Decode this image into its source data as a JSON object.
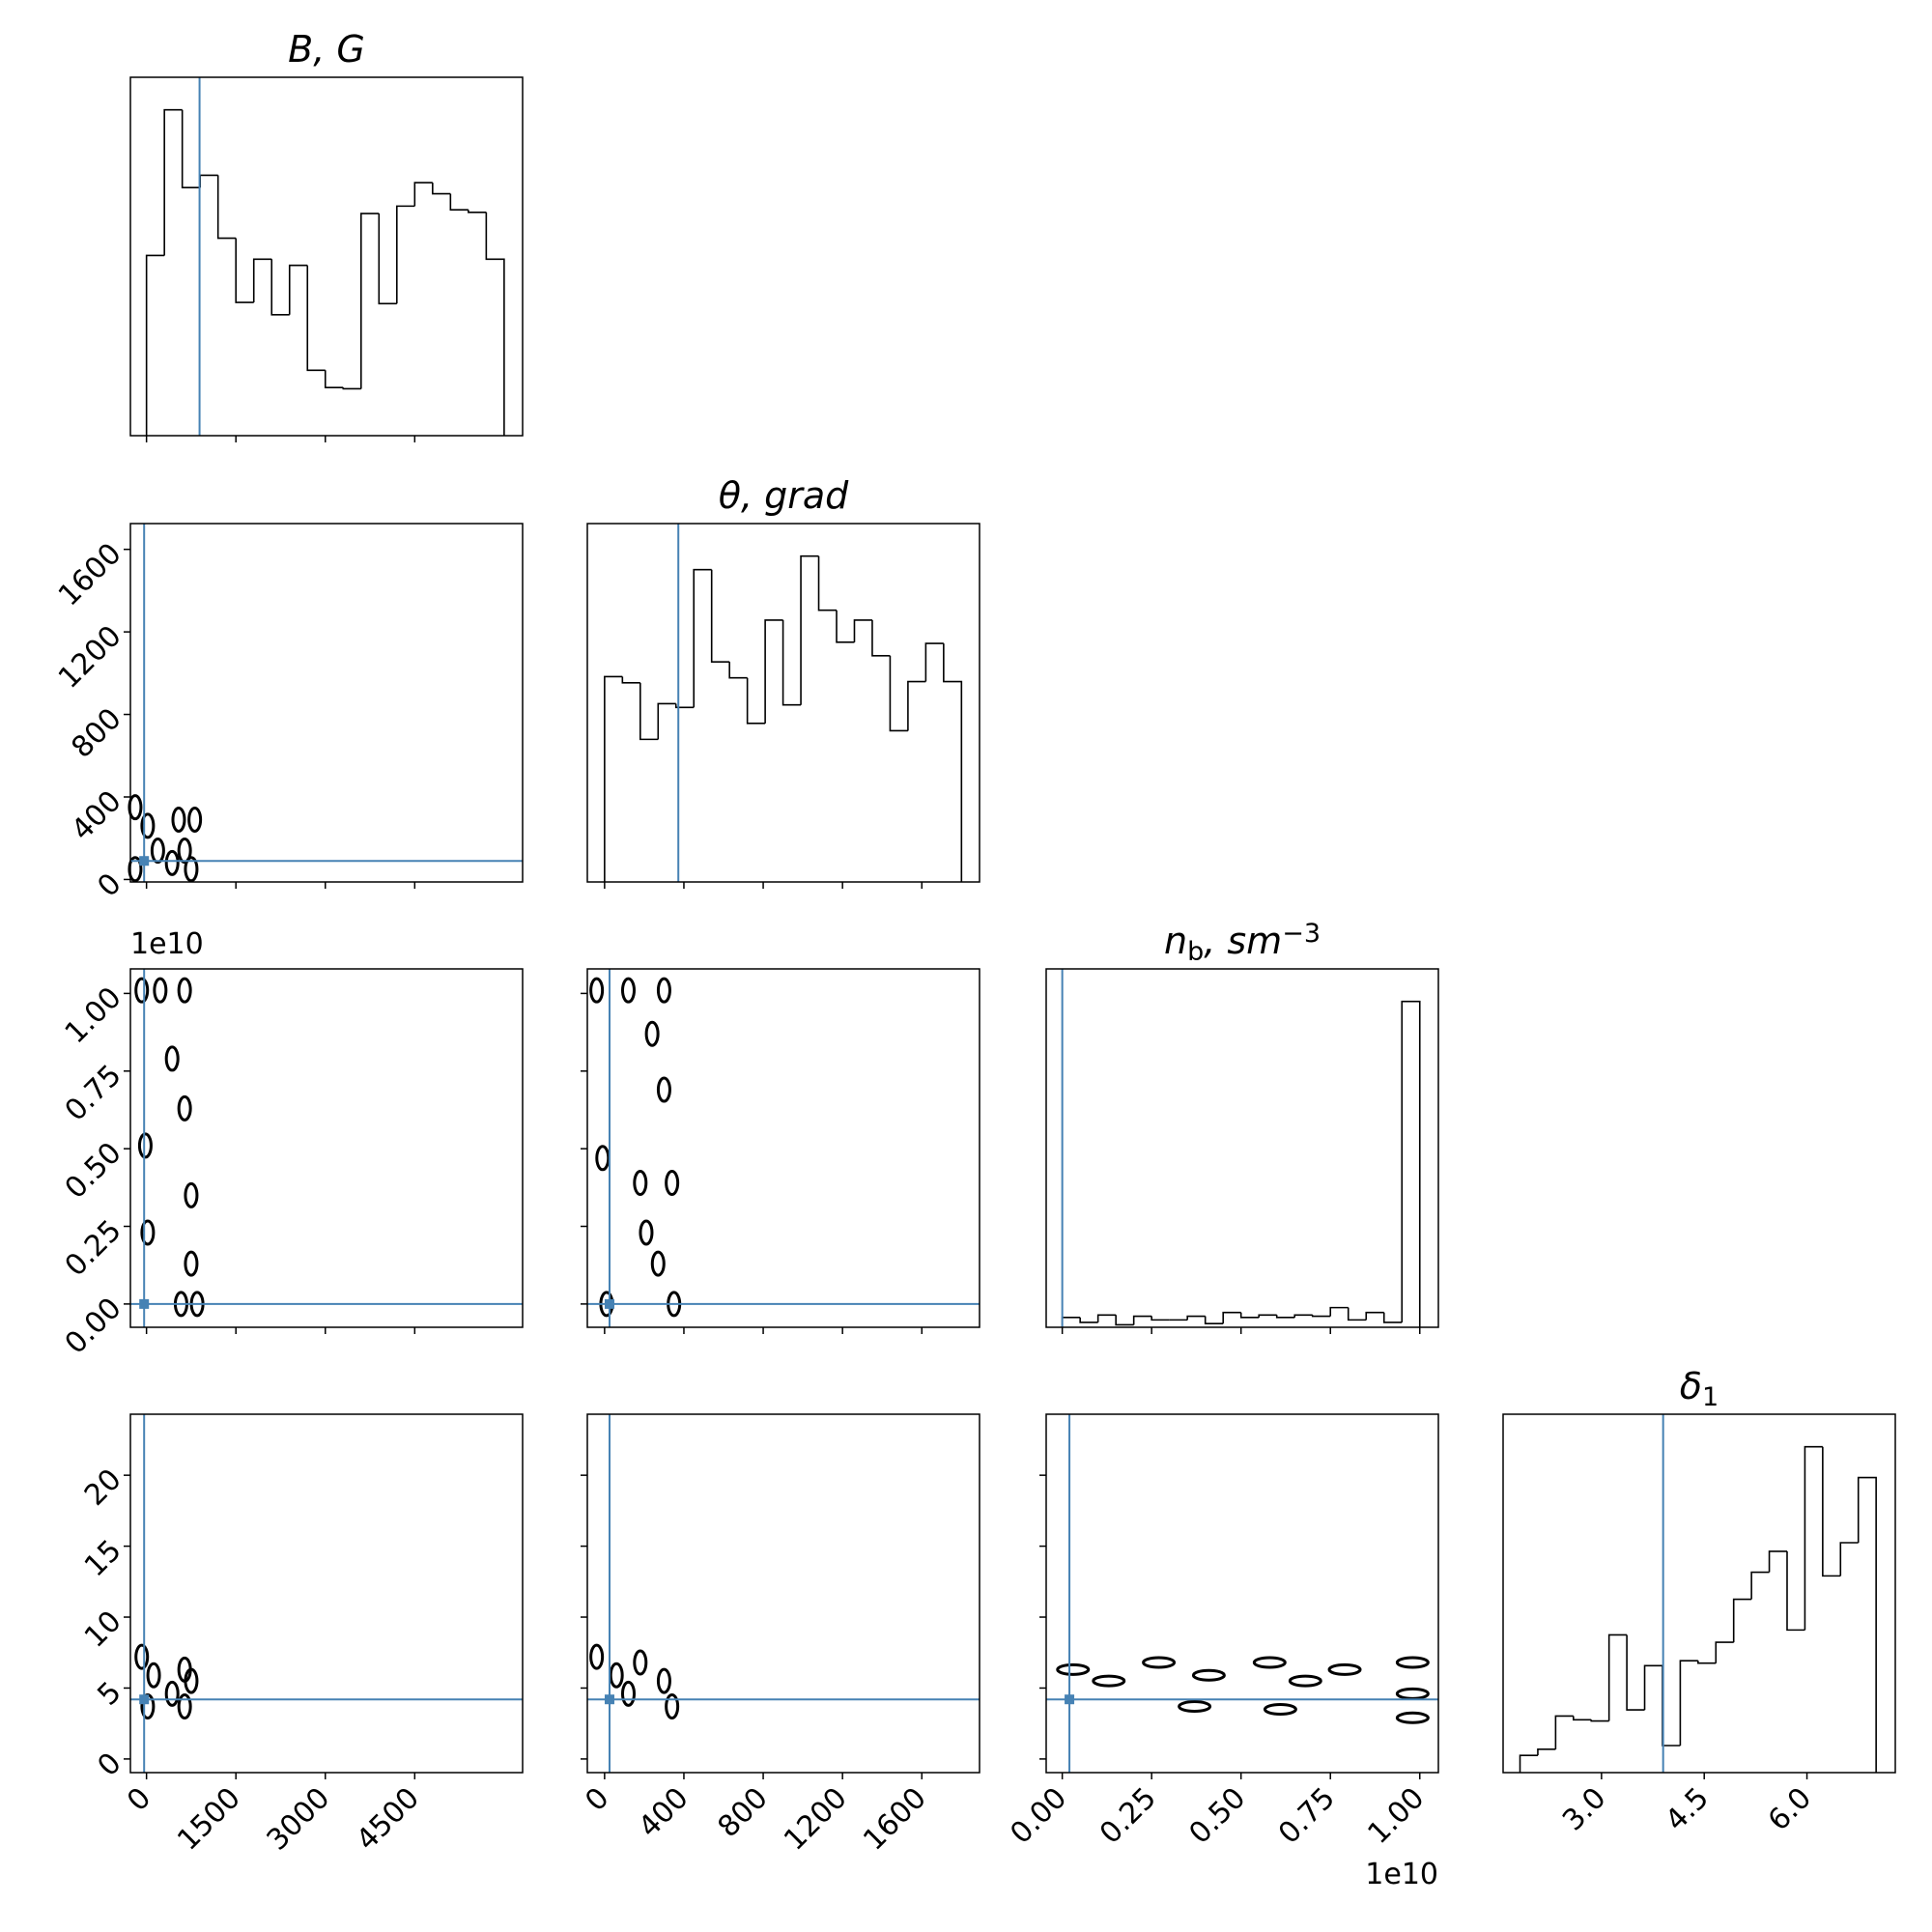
{
  "chart_data": [
    {
      "type": "histogram",
      "title": [
        "B, G"
      ],
      "title_shift": [
        "none"
      ],
      "bins": [
        0,
        300,
        600,
        900,
        1200,
        1500,
        1800,
        2100,
        2400,
        2700,
        3000,
        3300,
        3600,
        3900,
        4200,
        4500,
        4800,
        5100,
        5400,
        5700,
        6000
      ],
      "counts": [
        146,
        264,
        201,
        211,
        160,
        108,
        143,
        98,
        138,
        53,
        39,
        38,
        180,
        107,
        186,
        205,
        196,
        183,
        181,
        143
      ],
      "xlim": [
        -270,
        6310
      ],
      "truth": 890,
      "color": "#000000",
      "truth_color": "#4682b4"
    },
    {
      "type": "scatter",
      "x": [
        -190,
        20,
        190,
        540,
        640,
        750,
        430,
        810,
        -190
      ],
      "y": [
        350,
        260,
        140,
        290,
        140,
        50,
        80,
        290,
        50
      ],
      "xlim": [
        -270,
        6310
      ],
      "ylim": [
        -12,
        1725
      ],
      "yticks": [
        0,
        400,
        800,
        1200,
        1600
      ],
      "truth_x": -40,
      "truth_y": 90,
      "color": "#000000",
      "truth_color": "#4682b4"
    },
    {
      "type": "histogram",
      "title": [
        "θ, grad"
      ],
      "title_shift": [
        "none"
      ],
      "bins": [
        0,
        90,
        180,
        270,
        360,
        450,
        540,
        630,
        720,
        810,
        900,
        990,
        1080,
        1170,
        1260,
        1350,
        1440,
        1530,
        1620,
        1710,
        1800
      ],
      "counts": [
        167,
        162,
        116,
        145,
        142,
        254,
        179,
        166,
        129,
        213,
        144,
        265,
        221,
        195,
        213,
        184,
        123,
        163,
        194,
        163
      ],
      "xlim": [
        -87,
        1891
      ],
      "truth": 372,
      "color": "#000000",
      "truth_color": "#4682b4"
    },
    {
      "type": "scatter",
      "x": [
        -80,
        230,
        640,
        430,
        640,
        750,
        -20,
        20,
        750,
        850,
        580
      ],
      "y": [
        1.01,
        1.01,
        1.01,
        0.79,
        0.63,
        0.35,
        0.51,
        0.23,
        0.13,
        0,
        0
      ],
      "xlim": [
        -270,
        6310
      ],
      "ylim": [
        -0.075,
        1.079
      ],
      "yticks": [
        {
          "value": 0,
          "label": "0.00"
        },
        {
          "value": 0.25,
          "label": "0.25"
        },
        {
          "value": 0.5,
          "label": "0.50"
        },
        {
          "value": 0.75,
          "label": "0.75"
        },
        {
          "value": 1,
          "label": "1.00"
        }
      ],
      "y_offset_label": "1e10",
      "truth_x": -40,
      "truth_y": 0,
      "color": "#000000",
      "truth_color": "#4682b4"
    },
    {
      "type": "scatter",
      "x": [
        -40,
        120,
        300,
        240,
        300,
        -10,
        180,
        340,
        210,
        270,
        10,
        350
      ],
      "y": [
        1.01,
        1.01,
        1.01,
        0.87,
        0.69,
        0.47,
        0.39,
        0.39,
        0.23,
        0.13,
        0,
        0
      ],
      "xlim": [
        -87,
        1891
      ],
      "ylim": [
        -0.075,
        1.079
      ],
      "truth_x": 25,
      "truth_y": 0,
      "color": "#000000",
      "truth_color": "#4682b4"
    },
    {
      "type": "histogram",
      "title": [
        "n",
        "b",
        ", sm",
        "−3"
      ],
      "title_shift": [
        "none",
        "sub",
        "none",
        "super"
      ],
      "bins": [
        0,
        0.05,
        0.1,
        0.15,
        0.2,
        0.25,
        0.3,
        0.35,
        0.4,
        0.45,
        0.5,
        0.55,
        0.6,
        0.65,
        0.7,
        0.75,
        0.8,
        0.85,
        0.9,
        0.95,
        1
      ],
      "counts": [
        8,
        4,
        10,
        2,
        9,
        6,
        6,
        9,
        3,
        12,
        8,
        10,
        8,
        10,
        9,
        16,
        6,
        12,
        4,
        265
      ],
      "xlim": [
        -0.045,
        1.052
      ],
      "truth": 0,
      "color": "#000000",
      "truth_color": "#4682b4"
    },
    {
      "type": "scatter",
      "x": [
        -80,
        120,
        640,
        750,
        430,
        20,
        640
      ],
      "y": [
        7.2,
        5.9,
        6.3,
        5.5,
        4.6,
        3.7,
        3.7
      ],
      "xlim": [
        -270,
        6310
      ],
      "ylim": [
        -0.96,
        24.3
      ],
      "xticks": [
        0,
        1500,
        3000,
        4500
      ],
      "yticks": [
        0,
        5,
        10,
        15,
        20
      ],
      "truth_x": -40,
      "truth_y": 4.2,
      "color": "#000000",
      "truth_color": "#4682b4"
    },
    {
      "type": "scatter",
      "x": [
        -40,
        60,
        180,
        300,
        120,
        340
      ],
      "y": [
        7.2,
        5.9,
        6.8,
        5.5,
        4.6,
        3.7
      ],
      "xlim": [
        -87,
        1891
      ],
      "ylim": [
        -0.96,
        24.3
      ],
      "xticks": [
        0,
        400,
        800,
        1200,
        1600
      ],
      "truth_x": 25,
      "truth_y": 4.2,
      "color": "#000000",
      "truth_color": "#4682b4"
    },
    {
      "type": "scatter",
      "x": [
        0.03,
        0.13,
        0.27,
        0.41,
        0.58,
        0.68,
        0.79,
        0.98,
        0.98,
        0.98,
        0.61,
        0.37
      ],
      "y": [
        6.3,
        5.5,
        6.8,
        5.9,
        6.8,
        5.5,
        6.3,
        6.8,
        4.6,
        2.9,
        3.5,
        3.7
      ],
      "xlim": [
        -0.045,
        1.052
      ],
      "ylim": [
        -0.96,
        24.3
      ],
      "xticks": [
        {
          "value": 0,
          "label": "0.00"
        },
        {
          "value": 0.25,
          "label": "0.25"
        },
        {
          "value": 0.5,
          "label": "0.50"
        },
        {
          "value": 0.75,
          "label": "0.75"
        },
        {
          "value": 1,
          "label": "1.00"
        }
      ],
      "x_offset_label": "1e10",
      "truth_x": 0.02,
      "truth_y": 4.2,
      "color": "#000000",
      "truth_color": "#4682b4"
    },
    {
      "type": "histogram",
      "title": [
        "δ",
        "1"
      ],
      "title_shift": [
        "none",
        "sub"
      ],
      "bins": [
        1.81,
        2.07,
        2.33,
        2.59,
        2.85,
        3.11,
        3.37,
        3.63,
        3.89,
        4.15,
        4.41,
        4.67,
        4.93,
        5.19,
        5.45,
        5.71,
        5.97,
        6.23,
        6.49,
        6.75,
        7.01
      ],
      "counts": [
        14,
        19,
        46,
        43,
        42,
        112,
        51,
        87,
        22,
        91,
        89,
        106,
        141,
        163,
        180,
        116,
        265,
        160,
        187,
        240
      ],
      "xlim": [
        1.563,
        7.29
      ],
      "xticks": [
        {
          "value": 3,
          "label": "3.0"
        },
        4.5,
        {
          "value": 6,
          "label": "6.0"
        }
      ],
      "truth": 3.9,
      "color": "#000000",
      "truth_color": "#4682b4"
    }
  ]
}
